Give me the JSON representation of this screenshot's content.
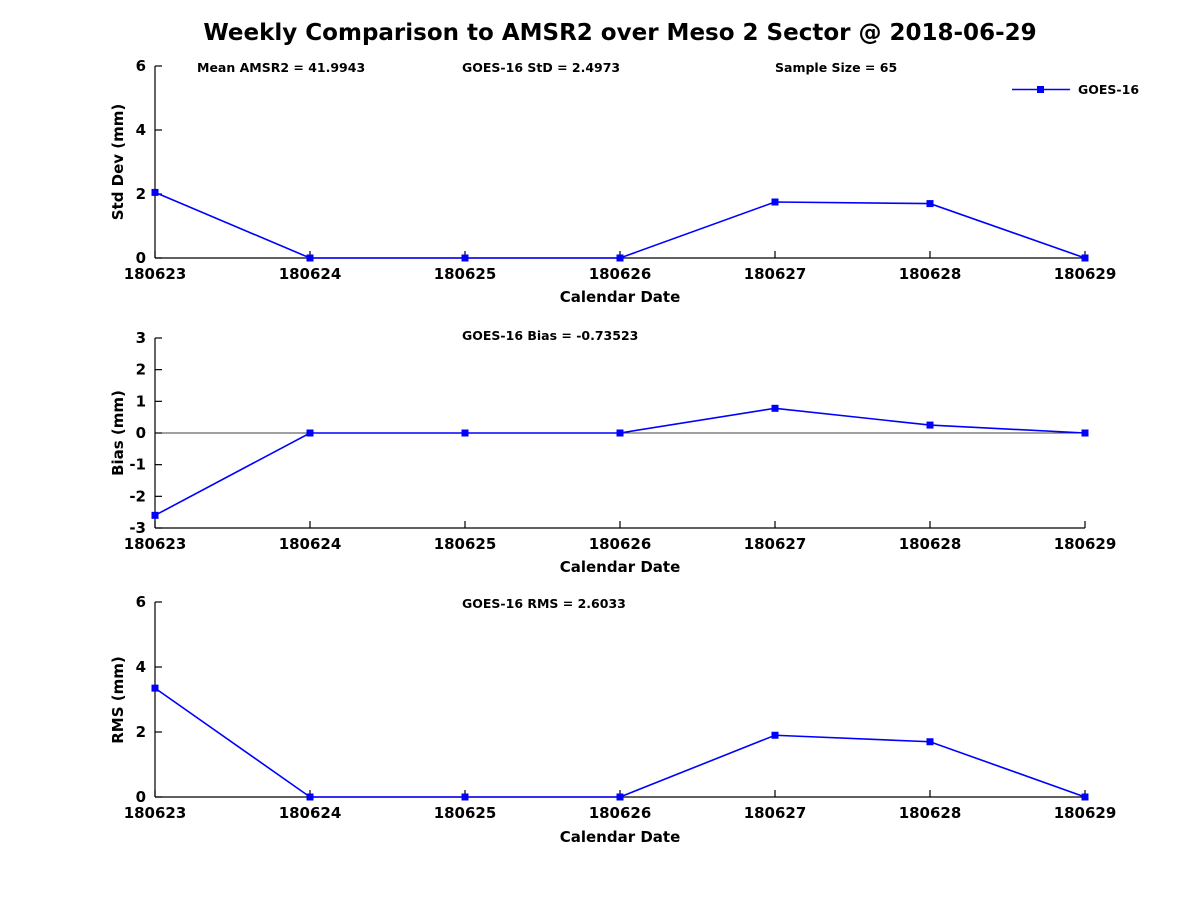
{
  "page": {
    "title": "Weekly Comparison to AMSR2 over Meso 2 Sector @ 2018-06-29"
  },
  "legend": {
    "label": "GOES-16",
    "color": "#0000FF"
  },
  "chart_data": [
    {
      "type": "line",
      "categories": [
        "180623",
        "180624",
        "180625",
        "180626",
        "180627",
        "180628",
        "180629"
      ],
      "series": [
        {
          "name": "GOES-16",
          "color": "#0000FF",
          "values": [
            2.05,
            0,
            0,
            0,
            1.75,
            1.7,
            0
          ]
        }
      ],
      "annotations": [
        "Mean AMSR2 = 41.9943",
        "GOES-16 StD = 2.4973",
        "Sample Size = 65"
      ],
      "ylabel": "Std Dev (mm)",
      "xlabel": "Calendar Date",
      "ylim": [
        0,
        6
      ],
      "yticks": [
        0,
        2,
        4,
        6
      ],
      "zero_line": false,
      "legend_position": "top-right",
      "grid": false
    },
    {
      "type": "line",
      "categories": [
        "180623",
        "180624",
        "180625",
        "180626",
        "180627",
        "180628",
        "180629"
      ],
      "series": [
        {
          "name": "GOES-16",
          "color": "#0000FF",
          "values": [
            -2.6,
            0,
            0,
            0,
            0.78,
            0.25,
            0
          ]
        }
      ],
      "title": "GOES-16 Bias  = -0.73523",
      "ylabel": "Bias (mm)",
      "xlabel": "Calendar Date",
      "ylim": [
        -3,
        3
      ],
      "yticks": [
        -3,
        -2,
        -1,
        0,
        1,
        2,
        3
      ],
      "zero_line": true,
      "grid": false
    },
    {
      "type": "line",
      "categories": [
        "180623",
        "180624",
        "180625",
        "180626",
        "180627",
        "180628",
        "180629"
      ],
      "series": [
        {
          "name": "GOES-16",
          "color": "#0000FF",
          "values": [
            3.35,
            0,
            0,
            0,
            1.9,
            1.7,
            0
          ]
        }
      ],
      "title": "GOES-16 RMS = 2.6033",
      "ylabel": "RMS (mm)",
      "xlabel": "Calendar Date",
      "ylim": [
        0,
        6
      ],
      "yticks": [
        0,
        2,
        4,
        6
      ],
      "zero_line": false,
      "grid": false
    }
  ]
}
